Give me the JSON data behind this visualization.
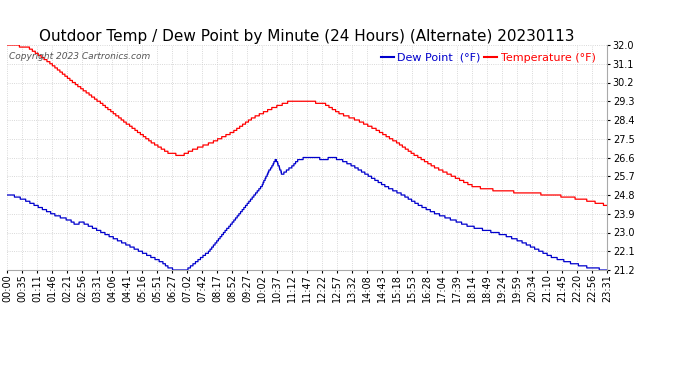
{
  "title": "Outdoor Temp / Dew Point by Minute (24 Hours) (Alternate) 20230113",
  "copyright": "Copyright 2023 Cartronics.com",
  "legend_dew": "Dew Point  (°F)",
  "legend_temp": "Temperature (°F)",
  "ylim_min": 21.2,
  "ylim_max": 32.0,
  "yticks": [
    21.2,
    22.1,
    23.0,
    23.9,
    24.8,
    25.7,
    26.6,
    27.5,
    28.4,
    29.3,
    30.2,
    31.1,
    32.0
  ],
  "xtick_labels": [
    "00:00",
    "00:35",
    "01:11",
    "01:46",
    "02:21",
    "02:56",
    "03:31",
    "04:06",
    "04:41",
    "05:16",
    "05:51",
    "06:27",
    "07:02",
    "07:42",
    "08:17",
    "08:52",
    "09:27",
    "10:02",
    "10:37",
    "11:12",
    "11:47",
    "12:22",
    "12:57",
    "13:32",
    "14:08",
    "14:43",
    "15:18",
    "15:53",
    "16:28",
    "17:04",
    "17:39",
    "18:14",
    "18:49",
    "19:24",
    "19:59",
    "20:34",
    "21:10",
    "21:45",
    "22:20",
    "22:56",
    "23:31"
  ],
  "temp_color": "#ff0000",
  "dew_color": "#0000cc",
  "background_color": "#ffffff",
  "grid_color": "#cccccc",
  "title_fontsize": 11,
  "tick_label_fontsize": 7
}
